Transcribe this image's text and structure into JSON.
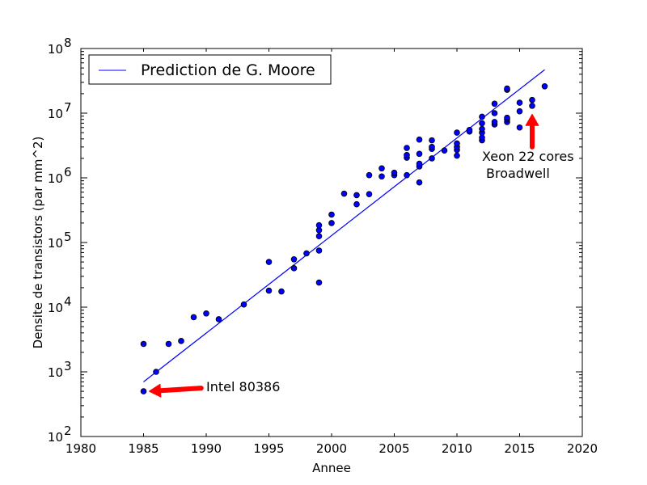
{
  "chart_data": {
    "type": "scatter",
    "xlabel": "Annee",
    "ylabel": "Densite de transistors (par mm^2)",
    "xlim": [
      1980,
      2020
    ],
    "ylim": [
      100,
      100000000
    ],
    "yscale": "log",
    "x_ticks": [
      {
        "value": 1980,
        "label": "1980"
      },
      {
        "value": 1985,
        "label": "1985"
      },
      {
        "value": 1990,
        "label": "1990"
      },
      {
        "value": 1995,
        "label": "1995"
      },
      {
        "value": 2000,
        "label": "2000"
      },
      {
        "value": 2005,
        "label": "2005"
      },
      {
        "value": 2010,
        "label": "2010"
      },
      {
        "value": 2015,
        "label": "2015"
      },
      {
        "value": 2020,
        "label": "2020"
      }
    ],
    "y_ticks": [
      {
        "value": 100,
        "base": "10",
        "exp": "2"
      },
      {
        "value": 1000,
        "base": "10",
        "exp": "3"
      },
      {
        "value": 10000,
        "base": "10",
        "exp": "4"
      },
      {
        "value": 100000,
        "base": "10",
        "exp": "5"
      },
      {
        "value": 1000000,
        "base": "10",
        "exp": "6"
      },
      {
        "value": 10000000,
        "base": "10",
        "exp": "7"
      },
      {
        "value": 100000000,
        "base": "10",
        "exp": "8"
      }
    ],
    "grid": false,
    "legend_placement": "top-left",
    "colors": {
      "points": "#0000ff",
      "line": "#0000ff",
      "arrow": "#ff0000"
    },
    "series": [
      {
        "kind": "scatter",
        "points": [
          [
            1985,
            500
          ],
          [
            1985,
            2700
          ],
          [
            1986,
            1000
          ],
          [
            1987,
            2700
          ],
          [
            1988,
            3000
          ],
          [
            1989,
            7000
          ],
          [
            1990,
            8000
          ],
          [
            1991,
            6500
          ],
          [
            1993,
            11000
          ],
          [
            1995,
            50000
          ],
          [
            1995,
            18000
          ],
          [
            1996,
            17500
          ],
          [
            1997,
            55000
          ],
          [
            1997,
            40000
          ],
          [
            1998,
            68000
          ],
          [
            1999,
            24000
          ],
          [
            1999,
            75000
          ],
          [
            1999,
            125000
          ],
          [
            1999,
            155000
          ],
          [
            1999,
            185000
          ],
          [
            2000,
            200000
          ],
          [
            2000,
            270000
          ],
          [
            2001,
            570000
          ],
          [
            2002,
            390000
          ],
          [
            2002,
            540000
          ],
          [
            2003,
            560000
          ],
          [
            2003,
            1100000
          ],
          [
            2004,
            1050000
          ],
          [
            2004,
            1400000
          ],
          [
            2005,
            1100000
          ],
          [
            2005,
            1200000
          ],
          [
            2006,
            1100000
          ],
          [
            2006,
            2050000
          ],
          [
            2006,
            2250000
          ],
          [
            2006,
            2900000
          ],
          [
            2007,
            850000
          ],
          [
            2007,
            1500000
          ],
          [
            2007,
            1650000
          ],
          [
            2007,
            2350000
          ],
          [
            2007,
            3900000
          ],
          [
            2008,
            2000000
          ],
          [
            2008,
            2800000
          ],
          [
            2008,
            3000000
          ],
          [
            2008,
            3800000
          ],
          [
            2009,
            2650000
          ],
          [
            2010,
            2200000
          ],
          [
            2010,
            2700000
          ],
          [
            2010,
            3000000
          ],
          [
            2010,
            3400000
          ],
          [
            2010,
            5000000
          ],
          [
            2011,
            5200000
          ],
          [
            2011,
            5500000
          ],
          [
            2012,
            3800000
          ],
          [
            2012,
            4200000
          ],
          [
            2012,
            5000000
          ],
          [
            2012,
            5700000
          ],
          [
            2012,
            7000000
          ],
          [
            2012,
            8800000
          ],
          [
            2013,
            6700000
          ],
          [
            2013,
            7300000
          ],
          [
            2013,
            10000000
          ],
          [
            2013,
            14000000
          ],
          [
            2014,
            7300000
          ],
          [
            2014,
            8000000
          ],
          [
            2014,
            8500000
          ],
          [
            2014,
            23000000
          ],
          [
            2014,
            24000000
          ],
          [
            2015,
            6000000
          ],
          [
            2015,
            10700000
          ],
          [
            2015,
            14500000
          ],
          [
            2016,
            13000000
          ],
          [
            2016,
            16000000
          ],
          [
            2017,
            26000000
          ]
        ]
      },
      {
        "kind": "line",
        "name": "Prediction de G. Moore",
        "x": [
          1985,
          2017
        ],
        "y": [
          700,
          47000000
        ]
      }
    ],
    "annotations": [
      {
        "text": "Intel 80386",
        "point": [
          1985,
          500
        ],
        "arrow_from": [
          1989.6,
          560
        ]
      },
      {
        "text_line1": "Xeon 22 cores",
        "text_line2": "Broadwell",
        "point": [
          2016,
          13000000
        ],
        "arrow_from": [
          2016,
          3000000
        ]
      }
    ]
  }
}
